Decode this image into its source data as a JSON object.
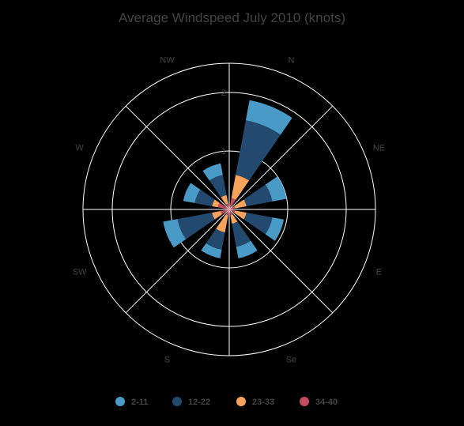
{
  "chart_data": {
    "type": "polar-stacked-bar",
    "title": "Average Windspeed July 2010 (knots)",
    "directions": [
      "N",
      "NE",
      "E",
      "Se",
      "S",
      "SW",
      "W",
      "NW"
    ],
    "r_ticks": [
      "1",
      "2"
    ],
    "r_max": 2.5,
    "grid": true,
    "legend_position": "bottom",
    "series": [
      {
        "name": "2-11",
        "color": "#4a9ac8",
        "values": [
          0.35,
          0.25,
          0.2,
          0.2,
          0.15,
          0.25,
          0.2,
          0.2
        ]
      },
      {
        "name": "12-22",
        "color": "#234a6e",
        "values": [
          0.95,
          0.45,
          0.45,
          0.4,
          0.3,
          0.6,
          0.3,
          0.35
        ]
      },
      {
        "name": "23-33",
        "color": "#f7a35c",
        "values": [
          0.4,
          0.2,
          0.2,
          0.15,
          0.3,
          0.15,
          0.1,
          0.15
        ]
      },
      {
        "name": "34-40",
        "color": "#c54b5e",
        "values": [
          0.2,
          0.1,
          0.1,
          0.1,
          0.1,
          0.15,
          0.2,
          0.1
        ]
      }
    ]
  }
}
